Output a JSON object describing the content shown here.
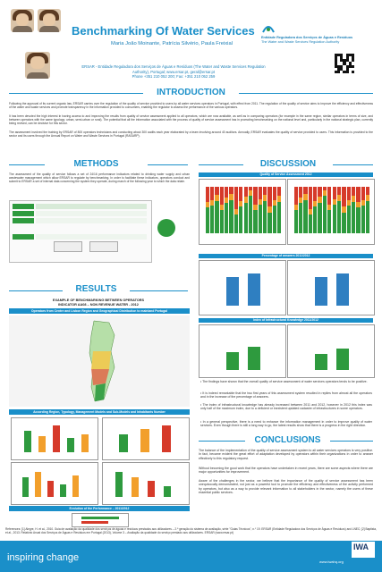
{
  "header": {
    "title": "Benchmarking Of Water Services",
    "authors": "Maria João Moinante, Patrícia Silvério, Paula Freixial",
    "affiliation_line1": "ERSAR - Entidade Reguladora dos Serviços de Águas e Resíduos (The Water and Waste Services Regulation",
    "affiliation_line2": "Authority), Portugal; www.ersar.pt, geral@ersar.pt",
    "phone": "Phone +351 210 052 200; Fax: +351 210 052 259",
    "logo_line1": "Entidade Reguladora dos Serviços de Águas e Resíduos",
    "logo_line2": "The Water and Waste Services Regulation Authority"
  },
  "introduction": {
    "heading": "INTRODUCTION",
    "p1": "Following the approval of its current organic law, ERSAR carries over the regulation of the quality of service provided to users by all water services operators in Portugal, with effect from 2011. The regulation of the quality of service aims to improve the efficiency and effectiveness of the water and waste services and promote transparency in the information provided to consumers, enabling the regulator to assess the performance of the various operators.",
    "p2": "It has been devoted the high interest in having access to and improving the results from quality of service assessment applied to all operators, which are now available, as well as in comparing operators (for example in the same region, similar operators in terms of size, and between operators with the same typology: urban, semi-urban or rural). The potential that all the information associated with the process of quality of service assessment has in promoting benchmarking on the national level and, particularly in the national strategic plan, currently being revised, can be decisive for this sector.",
    "p3": "The assessment involved the training by ERSAR of 800 operators technicians and conducting about 300 audits each year elaborated by a team involving around 40 auditors. Annually, ERSAR evaluates the quality of service provided to users. This information is provided to the sector and its users through the Annual Report on Water and Waste Services in Portugal (RASARP)."
  },
  "methods": {
    "heading": "METHODS",
    "text": "The assessment of the quality of service follows a set of 24/16 performance indicators related to drinking water supply and urban wastewater management which allow ERSAR to regulate by benchmarking. In order to facilitate these indicators, operators conduct and submit to ERSAR a set of internal data concerning the system they operate, during march of the following year to which the data relate."
  },
  "results": {
    "heading": "RESULTS",
    "subtitle1": "EXAMPLE OF BENCHMARKING BETWEEN OPERATORS",
    "subtitle2": "INDICATOR AA08 – NON REVENUE WATER - 2012",
    "blue_bar1": "Operators from Centre and Lisbon Region and Geographical Distribution to mainland Portugal",
    "blue_bar2": "According Region, Typology, Management Models and Sub-Models and Inhabitants Number",
    "blue_bar3": "Evolution of the Performance – 2011/2012"
  },
  "discussion": {
    "heading": "DISCUSSION",
    "panel1_title": "Quality of Service Assessment 2012",
    "panel2_title": "Percentage of answers 2011/2012",
    "panel3_title": "Index of Infrastructural Knowledge 2011/2012",
    "bullets": [
      "The findings have shown that the overall quality of service assessment of water services operators tends to be positive.",
      "It is indeed remarkable that the two first years of this assessment system resulted in replies from almost all the operators and in the increase of the percentage of answers.",
      "The index of infrastructural knowledge has already increased between 2011 and 2012, however in 2012 this index was only half of the maximum index, due to a deficient or inexistent updated cadastre of infrastructures in some operators.",
      "In a general perspective, there is a need to enhance the information management in order to improve quality of water services. Even though there is still a long way to go, the latest results show that there is a progress in the right direction."
    ]
  },
  "conclusions": {
    "heading": "CONCLUSIONS",
    "p1": "The balance of the implementation of the quality of service assessment system to all water services operators is very positive. In fact, became evident the great effort of adaptation developed by operators within their organizations in order to answer effectively to this regulatory request.",
    "p2": "Without becoming the good work that the operators have undertaken in recent years, there are some aspects where there are major opportunities for improvement.",
    "p3": "Aware of the challenges in the sector, we believe that the importance of the quality of service assessment has been unequivocally demonstrated, not just as a powerful tool to promote the efficiency and effectiveness of the activity performed by operators, but also as a way to provide relevant information to all stakeholders in the sector, namely the users of these essential public services."
  },
  "footer": {
    "references": "References: [1] Alegre, H. et al., 2010. Guia de avaliação da qualidade dos serviços de águas e resíduos prestados aos utilizadores – 2.ª geração do sistema de avaliação, série \"Guias Técnicos\", n.º 19. ERSAR (Entidade Reguladora dos Serviços de Águas e Resíduos) and LNEC; [2] Baptista, et al., 2013. Relatório Anual dos Serviços de Águas e Resíduos em Portugal (2013), Volume 3 – Avaliação da qualidade do serviço prestado aos utilizadores. ERSAR (www.ersar.pt)",
    "slogan": "inspiring change",
    "website": "www.iwahq.org",
    "iwa_logo": "IWA"
  }
}
